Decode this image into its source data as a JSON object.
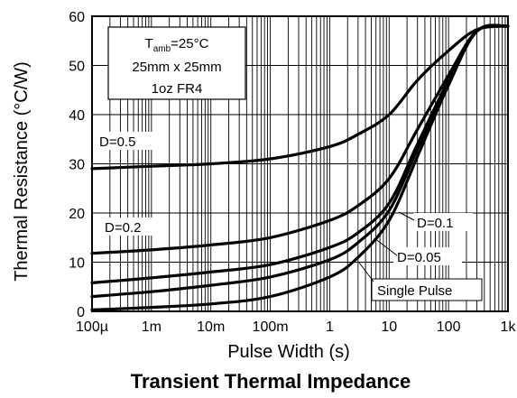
{
  "chart_data": {
    "type": "line",
    "title": "Transient Thermal Impedance",
    "xlabel": "Pulse Width (s)",
    "ylabel": "Thermal Resistance (°C/W)",
    "x_scale": "log",
    "xlim": [
      0.0001,
      1000
    ],
    "ylim": [
      0,
      60
    ],
    "x_ticks": [
      {
        "value": 0.0001,
        "label": "100µ"
      },
      {
        "value": 0.001,
        "label": "1m"
      },
      {
        "value": 0.01,
        "label": "10m"
      },
      {
        "value": 0.1,
        "label": "100m"
      },
      {
        "value": 1,
        "label": "1"
      },
      {
        "value": 10,
        "label": "10"
      },
      {
        "value": 100,
        "label": "100"
      },
      {
        "value": 1000,
        "label": "1k"
      }
    ],
    "y_ticks": [
      0,
      10,
      20,
      30,
      40,
      50,
      60
    ],
    "grid": true,
    "conditions": [
      "T_amb=25°C",
      "25mm x 25mm",
      "1oz FR4"
    ],
    "series": [
      {
        "name": "D=0.5",
        "points": [
          [
            0.0001,
            29
          ],
          [
            0.001,
            29.5
          ],
          [
            0.01,
            30
          ],
          [
            0.1,
            31
          ],
          [
            1,
            33.5
          ],
          [
            3,
            36
          ],
          [
            10,
            40
          ],
          [
            30,
            47
          ],
          [
            100,
            53
          ],
          [
            300,
            57.3
          ],
          [
            1000,
            58
          ]
        ]
      },
      {
        "name": "D=0.2",
        "points": [
          [
            0.0001,
            11.8
          ],
          [
            0.001,
            12.5
          ],
          [
            0.01,
            13.5
          ],
          [
            0.1,
            15
          ],
          [
            1,
            18.5
          ],
          [
            3,
            21.5
          ],
          [
            10,
            27
          ],
          [
            30,
            37
          ],
          [
            100,
            48
          ],
          [
            300,
            57
          ],
          [
            1000,
            58
          ]
        ]
      },
      {
        "name": "D=0.1",
        "points": [
          [
            0.0001,
            5.8
          ],
          [
            0.001,
            6.8
          ],
          [
            0.01,
            8
          ],
          [
            0.1,
            9.5
          ],
          [
            1,
            13
          ],
          [
            3,
            16
          ],
          [
            10,
            22
          ],
          [
            30,
            34
          ],
          [
            100,
            47
          ],
          [
            300,
            57
          ],
          [
            1000,
            58
          ]
        ]
      },
      {
        "name": "D=0.05",
        "points": [
          [
            0.0001,
            3
          ],
          [
            0.001,
            4
          ],
          [
            0.01,
            5.3
          ],
          [
            0.1,
            7
          ],
          [
            1,
            10.5
          ],
          [
            3,
            14
          ],
          [
            10,
            20.5
          ],
          [
            30,
            33
          ],
          [
            100,
            46.5
          ],
          [
            300,
            57
          ],
          [
            1000,
            58
          ]
        ]
      },
      {
        "name": "Single Pulse",
        "points": [
          [
            0.0001,
            0.3
          ],
          [
            0.001,
            0.8
          ],
          [
            0.01,
            1.5
          ],
          [
            0.1,
            3
          ],
          [
            1,
            7
          ],
          [
            3,
            11
          ],
          [
            10,
            18.5
          ],
          [
            30,
            31.5
          ],
          [
            100,
            46
          ],
          [
            300,
            57
          ],
          [
            1000,
            58
          ]
        ]
      }
    ]
  }
}
